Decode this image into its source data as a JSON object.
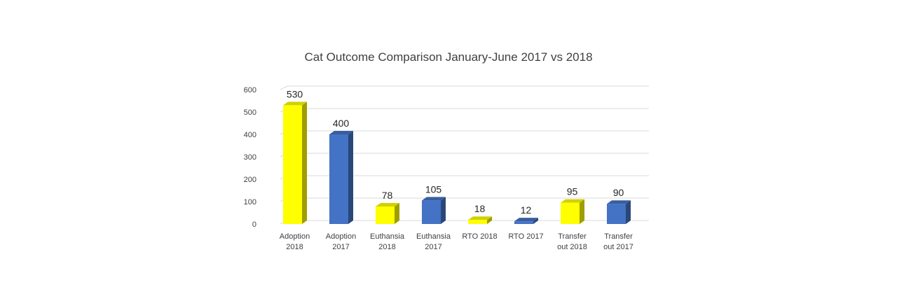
{
  "chart_data": {
    "type": "bar",
    "title": "Cat Outcome Comparison January-June 2017 vs 2018",
    "xlabel": "",
    "ylabel": "",
    "ylim": [
      0,
      600
    ],
    "yticks": [
      0,
      100,
      200,
      300,
      400,
      500,
      600
    ],
    "grid": true,
    "legend": "none",
    "categories": [
      [
        "Adoption",
        "2018"
      ],
      [
        "Adoption",
        "2017"
      ],
      [
        "Euthansia",
        "2018"
      ],
      [
        "Euthansia",
        "2017"
      ],
      [
        "RTO 2018"
      ],
      [
        "RTO 2017"
      ],
      [
        "Transfer",
        "out 2018"
      ],
      [
        "Transfer",
        "out 2017"
      ]
    ],
    "values": [
      530,
      400,
      78,
      105,
      18,
      12,
      95,
      90
    ],
    "bar_colors": [
      "#ffff00",
      "#4472c4",
      "#ffff00",
      "#4472c4",
      "#ffff00",
      "#4472c4",
      "#ffff00",
      "#4472c4"
    ],
    "data_labels": [
      "530",
      "400",
      "78",
      "105",
      "18",
      "12",
      "95",
      "90"
    ]
  }
}
